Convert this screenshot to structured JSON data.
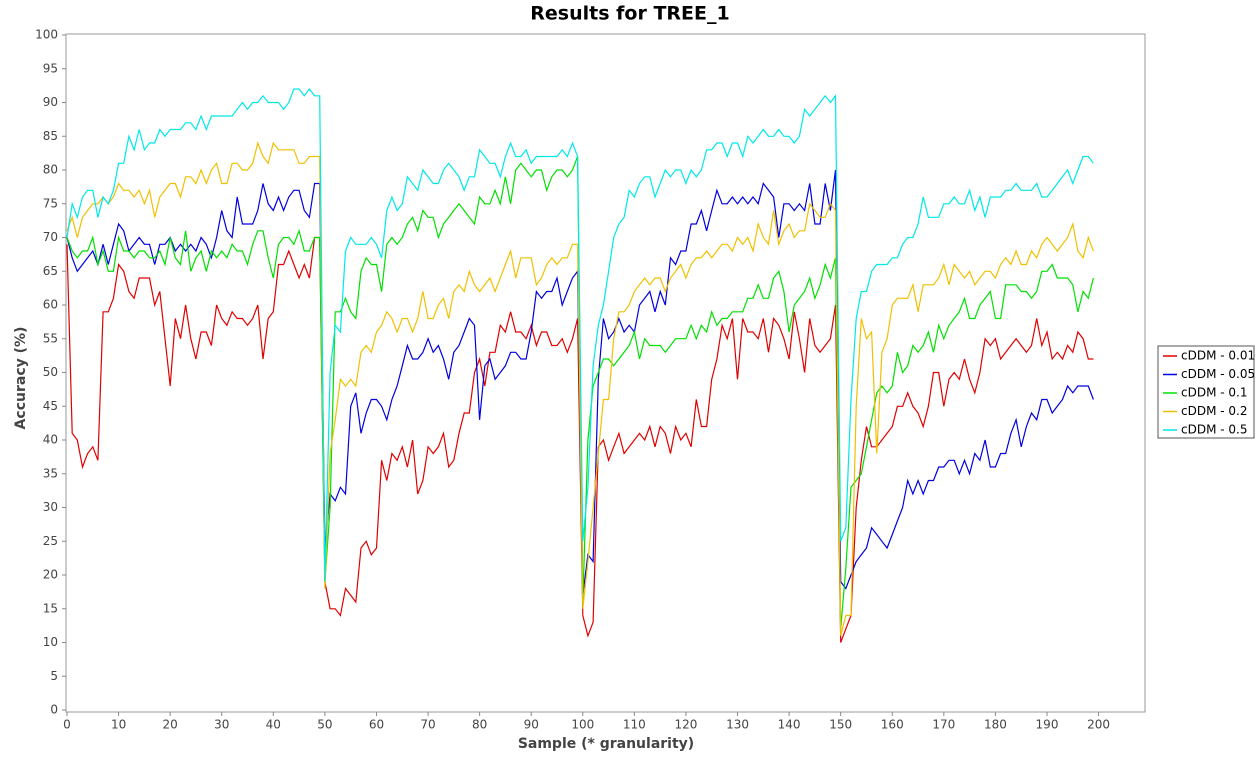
{
  "chart_data": {
    "type": "line",
    "title": "Results for TREE_1",
    "x_label": "Sample (* granularity)",
    "y_label": "Accuracy (%)",
    "xlim": [
      0,
      209
    ],
    "ylim": [
      0,
      100
    ],
    "xticks": [
      0,
      10,
      20,
      30,
      40,
      50,
      60,
      70,
      80,
      90,
      100,
      110,
      120,
      130,
      140,
      150,
      160,
      170,
      180,
      190,
      200
    ],
    "yticks": [
      0,
      5,
      10,
      15,
      20,
      25,
      30,
      35,
      40,
      45,
      50,
      55,
      60,
      65,
      70,
      75,
      80,
      85,
      90,
      95,
      100
    ],
    "legend": "right",
    "grid": false,
    "x": [
      0,
      1,
      2,
      3,
      4,
      5,
      6,
      7,
      8,
      9,
      10,
      11,
      12,
      13,
      14,
      15,
      16,
      17,
      18,
      19,
      20,
      21,
      22,
      23,
      24,
      25,
      26,
      27,
      28,
      29,
      30,
      31,
      32,
      33,
      34,
      35,
      36,
      37,
      38,
      39,
      40,
      41,
      42,
      43,
      44,
      45,
      46,
      47,
      48,
      49,
      50,
      51,
      52,
      53,
      54,
      55,
      56,
      57,
      58,
      59,
      60,
      61,
      62,
      63,
      64,
      65,
      66,
      67,
      68,
      69,
      70,
      71,
      72,
      73,
      74,
      75,
      76,
      77,
      78,
      79,
      80,
      81,
      82,
      83,
      84,
      85,
      86,
      87,
      88,
      89,
      90,
      91,
      92,
      93,
      94,
      95,
      96,
      97,
      98,
      99,
      100,
      101,
      102,
      103,
      104,
      105,
      106,
      107,
      108,
      109,
      110,
      111,
      112,
      113,
      114,
      115,
      116,
      117,
      118,
      119,
      120,
      121,
      122,
      123,
      124,
      125,
      126,
      127,
      128,
      129,
      130,
      131,
      132,
      133,
      134,
      135,
      136,
      137,
      138,
      139,
      140,
      141,
      142,
      143,
      144,
      145,
      146,
      147,
      148,
      149,
      150,
      151,
      152,
      153,
      154,
      155,
      156,
      157,
      158,
      159,
      160,
      161,
      162,
      163,
      164,
      165,
      166,
      167,
      168,
      169,
      170,
      171,
      172,
      173,
      174,
      175,
      176,
      177,
      178,
      179,
      180,
      181,
      182,
      183,
      184,
      185,
      186,
      187,
      188,
      189,
      190,
      191,
      192,
      193,
      194,
      195,
      196,
      197,
      198,
      199
    ],
    "series": [
      {
        "name": "cDDM - 0.01",
        "color": "#e00000",
        "values": [
          69,
          41,
          40,
          36,
          38,
          39,
          37,
          59,
          59,
          61,
          66,
          65,
          62,
          61,
          64,
          64,
          64,
          60,
          62,
          55,
          48,
          58,
          55,
          60,
          55,
          52,
          56,
          56,
          54,
          60,
          58,
          57,
          59,
          58,
          58,
          57,
          58,
          60,
          52,
          58,
          59,
          66,
          66,
          68,
          66,
          64,
          66,
          64,
          70,
          70,
          19,
          15,
          15,
          14,
          18,
          17,
          16,
          24,
          25,
          23,
          24,
          37,
          34,
          38,
          37,
          39,
          36,
          40,
          32,
          34,
          39,
          38,
          39,
          41,
          36,
          37,
          41,
          44,
          44,
          50,
          52,
          48,
          53,
          53,
          57,
          56,
          59,
          56,
          56,
          55,
          57,
          54,
          56,
          56,
          54,
          54,
          55,
          53,
          55,
          58,
          14,
          11,
          13,
          39,
          40,
          37,
          39,
          41,
          38,
          39,
          40,
          41,
          40,
          42,
          39,
          42,
          41,
          38,
          42,
          40,
          41,
          39,
          46,
          42,
          42,
          49,
          52,
          57,
          55,
          58,
          49,
          58,
          56,
          56,
          55,
          58,
          53,
          58,
          57,
          55,
          52,
          59,
          55,
          50,
          58,
          54,
          53,
          54,
          55,
          60,
          10,
          12,
          14,
          30,
          37,
          42,
          39,
          39,
          40,
          41,
          42,
          45,
          45,
          47,
          45,
          44,
          42,
          45,
          50,
          50,
          45,
          49,
          50,
          49,
          52,
          49,
          47,
          50,
          55,
          54,
          55,
          52,
          53,
          54,
          55,
          54,
          53,
          54,
          58,
          54,
          56,
          52,
          53,
          52,
          54,
          53,
          56,
          55,
          52,
          52
        ]
      },
      {
        "name": "cDDM - 0.05",
        "color": "#0000e0",
        "values": [
          70,
          67,
          65,
          66,
          67,
          68,
          66,
          69,
          66,
          69,
          72,
          71,
          68,
          69,
          70,
          69,
          69,
          66,
          69,
          69,
          70,
          68,
          69,
          68,
          69,
          68,
          70,
          69,
          67,
          70,
          74,
          71,
          70,
          76,
          72,
          72,
          72,
          74,
          78,
          75,
          74,
          76,
          74,
          76,
          77,
          77,
          74,
          73,
          78,
          78,
          24,
          32,
          31,
          33,
          32,
          45,
          47,
          41,
          44,
          46,
          46,
          45,
          43,
          46,
          48,
          51,
          54,
          52,
          52,
          53,
          55,
          53,
          54,
          52,
          49,
          53,
          54,
          56,
          58,
          57,
          43,
          51,
          52,
          49,
          50,
          51,
          53,
          53,
          52,
          52,
          56,
          62,
          61,
          62,
          62,
          64,
          60,
          62,
          64,
          65,
          17,
          23,
          22,
          49,
          58,
          55,
          56,
          58,
          56,
          57,
          56,
          60,
          61,
          62,
          59,
          62,
          60,
          67,
          66,
          68,
          68,
          72,
          72,
          74,
          71,
          74,
          77,
          75,
          75,
          76,
          75,
          76,
          75,
          76,
          75,
          78,
          77,
          76,
          70,
          75,
          75,
          74,
          75,
          74,
          78,
          72,
          72,
          78,
          74,
          80,
          19,
          18,
          20,
          22,
          23,
          24,
          27,
          26,
          25,
          24,
          26,
          28,
          30,
          34,
          32,
          34,
          32,
          34,
          34,
          36,
          36,
          37,
          37,
          35,
          37,
          35,
          38,
          37,
          40,
          36,
          36,
          38,
          38,
          41,
          43,
          39,
          42,
          44,
          43,
          46,
          46,
          44,
          45,
          46,
          48,
          47,
          48,
          48,
          48,
          46
        ]
      },
      {
        "name": "cDDM - 0.1",
        "color": "#00e000",
        "values": [
          70,
          68,
          67,
          68,
          68,
          70,
          66,
          68,
          65,
          65,
          70,
          68,
          68,
          67,
          68,
          68,
          67,
          67,
          68,
          66,
          70,
          67,
          66,
          71,
          65,
          67,
          68,
          65,
          68,
          67,
          68,
          67,
          69,
          68,
          68,
          66,
          69,
          71,
          71,
          67,
          64,
          69,
          70,
          70,
          69,
          71,
          68,
          68,
          70,
          70,
          19,
          30,
          59,
          59,
          61,
          59,
          58,
          65,
          67,
          66,
          66,
          62,
          69,
          70,
          69,
          70,
          72,
          73,
          71,
          74,
          73,
          73,
          70,
          72,
          73,
          74,
          75,
          74,
          73,
          72,
          76,
          75,
          75,
          77,
          75,
          79,
          75,
          80,
          81,
          80,
          79,
          80,
          80,
          77,
          79,
          80,
          80,
          79,
          80,
          82,
          16,
          40,
          48,
          50,
          52,
          52,
          51,
          52,
          53,
          54,
          56,
          52,
          55,
          54,
          54,
          54,
          53,
          54,
          55,
          55,
          55,
          57,
          55,
          57,
          56,
          59,
          57,
          58,
          58,
          59,
          59,
          59,
          61,
          61,
          63,
          61,
          61,
          64,
          65,
          62,
          56,
          60,
          61,
          62,
          64,
          61,
          63,
          66,
          64,
          67,
          12,
          21,
          33,
          34,
          35,
          39,
          43,
          47,
          48,
          47,
          48,
          53,
          50,
          51,
          54,
          53,
          54,
          56,
          53,
          57,
          55,
          57,
          58,
          59,
          61,
          58,
          58,
          60,
          61,
          62,
          58,
          58,
          63,
          63,
          63,
          62,
          62,
          61,
          62,
          65,
          65,
          66,
          64,
          64,
          64,
          63,
          59,
          62,
          61,
          64
        ]
      },
      {
        "name": "cDDM - 0.2",
        "color": "#f0c000",
        "values": [
          71,
          73,
          70,
          73,
          74,
          75,
          75,
          76,
          75,
          76,
          78,
          77,
          77,
          76,
          77,
          75,
          77,
          73,
          76,
          77,
          78,
          78,
          76,
          79,
          79,
          78,
          80,
          78,
          80,
          81,
          78,
          78,
          81,
          81,
          80,
          80,
          81,
          84,
          82,
          81,
          84,
          83,
          83,
          83,
          83,
          81,
          81,
          82,
          82,
          82,
          18,
          38,
          43,
          49,
          48,
          49,
          48,
          53,
          54,
          53,
          56,
          57,
          59,
          58,
          56,
          58,
          58,
          56,
          58,
          62,
          58,
          58,
          60,
          61,
          58,
          62,
          63,
          62,
          65,
          63,
          62,
          63,
          64,
          62,
          64,
          66,
          68,
          64,
          67,
          67,
          67,
          63,
          64,
          66,
          67,
          66,
          67,
          67,
          69,
          69,
          15,
          22,
          30,
          38,
          46,
          46,
          55,
          59,
          59,
          60,
          62,
          63,
          64,
          63,
          64,
          64,
          62,
          64,
          65,
          66,
          64,
          66,
          67,
          67,
          68,
          67,
          68,
          69,
          69,
          68,
          70,
          69,
          70,
          68,
          72,
          70,
          69,
          74,
          69,
          71,
          72,
          70,
          71,
          71,
          75,
          74,
          73,
          73,
          75,
          74,
          11,
          14,
          14,
          45,
          58,
          55,
          56,
          38,
          53,
          55,
          60,
          61,
          61,
          61,
          63,
          59,
          63,
          63,
          63,
          64,
          66,
          63,
          66,
          65,
          64,
          65,
          63,
          64,
          65,
          65,
          64,
          66,
          67,
          66,
          68,
          66,
          66,
          68,
          67,
          69,
          70,
          69,
          68,
          69,
          70,
          72,
          68,
          67,
          70,
          68
        ]
      },
      {
        "name": "cDDM - 0.5",
        "color": "#00e8e8",
        "values": [
          70,
          75,
          73,
          76,
          77,
          77,
          73,
          76,
          75,
          77,
          81,
          81,
          85,
          83,
          86,
          83,
          84,
          84,
          86,
          85,
          86,
          86,
          86,
          87,
          87,
          86,
          88,
          86,
          88,
          88,
          88,
          88,
          88,
          89,
          90,
          89,
          90,
          90,
          91,
          90,
          90,
          90,
          89,
          90,
          92,
          92,
          91,
          92,
          91,
          91,
          19,
          50,
          57,
          56,
          68,
          70,
          69,
          69,
          69,
          70,
          69,
          67,
          74,
          76,
          74,
          75,
          79,
          78,
          77,
          80,
          79,
          78,
          78,
          80,
          81,
          80,
          79,
          77,
          79,
          79,
          83,
          82,
          81,
          81,
          79,
          82,
          84,
          82,
          82,
          83,
          81,
          82,
          82,
          82,
          82,
          82,
          83,
          82,
          84,
          82,
          25,
          33,
          51,
          57,
          60,
          65,
          70,
          72,
          73,
          77,
          76,
          78,
          79,
          79,
          76,
          78,
          80,
          79,
          80,
          80,
          78,
          80,
          79,
          80,
          83,
          83,
          84,
          84,
          82,
          84,
          84,
          82,
          85,
          84,
          85,
          86,
          85,
          85,
          86,
          85,
          85,
          84,
          85,
          89,
          88,
          89,
          90,
          91,
          90,
          91,
          25,
          27,
          46,
          58,
          62,
          62,
          65,
          66,
          66,
          66,
          67,
          67,
          69,
          70,
          70,
          72,
          76,
          73,
          73,
          73,
          75,
          75,
          76,
          75,
          75,
          77,
          74,
          76,
          73,
          76,
          76,
          76,
          77,
          77,
          78,
          77,
          77,
          77,
          78,
          76,
          76,
          77,
          78,
          79,
          80,
          78,
          80,
          82,
          82,
          81
        ]
      }
    ]
  }
}
